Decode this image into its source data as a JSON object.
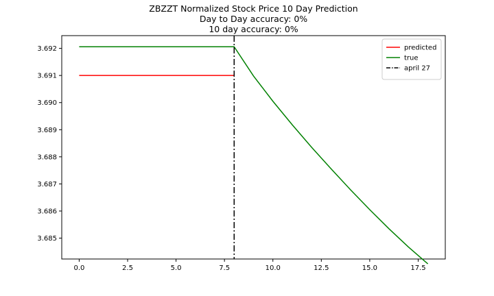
{
  "chart_data": {
    "type": "line",
    "title": "ZBZZT Normalized Stock Price 10 Day Prediction",
    "subtitle_lines": [
      "Day to Day accuracy: 0%",
      "10 day accuracy: 0%"
    ],
    "xlabel": "",
    "ylabel": "",
    "xlim": [
      -0.9,
      18.9
    ],
    "ylim": [
      3.68423,
      3.69247
    ],
    "x_ticks": [
      0.0,
      2.5,
      5.0,
      7.5,
      10.0,
      12.5,
      15.0,
      17.5
    ],
    "x_tick_labels": [
      "0.0",
      "2.5",
      "5.0",
      "7.5",
      "10.0",
      "12.5",
      "15.0",
      "17.5"
    ],
    "y_ticks": [
      3.685,
      3.686,
      3.687,
      3.688,
      3.689,
      3.69,
      3.691,
      3.692
    ],
    "y_tick_labels": [
      "3.685",
      "3.686",
      "3.687",
      "3.688",
      "3.689",
      "3.690",
      "3.691",
      "3.692"
    ],
    "grid": false,
    "legend_position": "top-right",
    "series": [
      {
        "name": "predicted",
        "color": "#ff0000",
        "style": "solid",
        "points": [
          [
            0,
            3.691
          ],
          [
            8,
            3.691
          ]
        ]
      },
      {
        "name": "true",
        "color": "#008000",
        "style": "solid",
        "points": [
          [
            0,
            3.69206
          ],
          [
            8,
            3.69206
          ],
          [
            9,
            3.69098
          ],
          [
            10,
            3.69005
          ],
          [
            11,
            3.68918
          ],
          [
            12,
            3.68835
          ],
          [
            13,
            3.68756
          ],
          [
            14,
            3.68679
          ],
          [
            15,
            3.68605
          ],
          [
            16,
            3.68534
          ],
          [
            17,
            3.68467
          ],
          [
            18,
            3.68405
          ]
        ]
      }
    ],
    "vlines": [
      {
        "name": "april 27",
        "x": 8,
        "color": "#000000",
        "style": "dashdot"
      }
    ]
  }
}
